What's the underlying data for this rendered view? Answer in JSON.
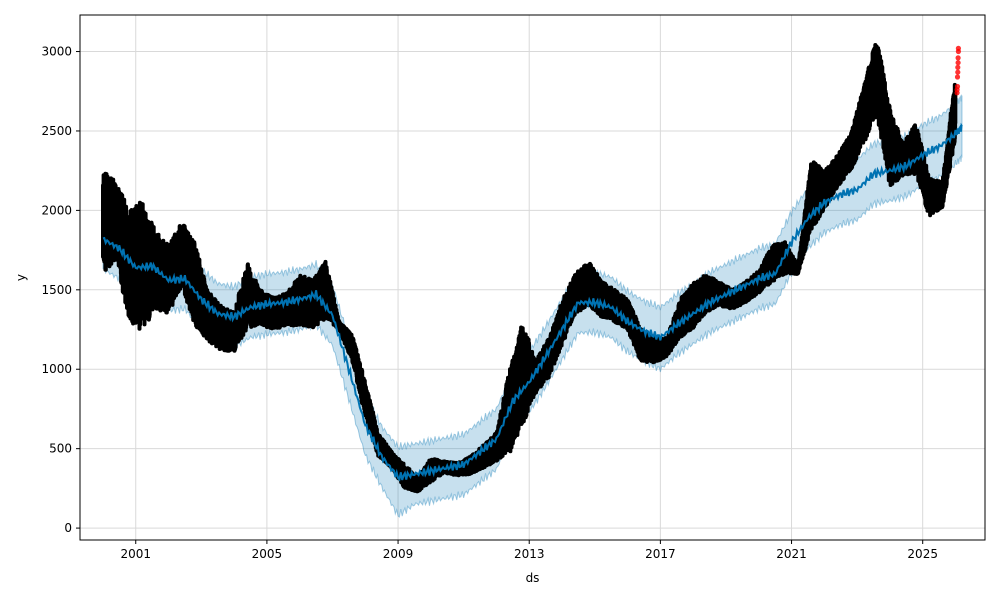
{
  "chart_data": {
    "type": "scatter",
    "title": "",
    "xlabel": "ds",
    "ylabel": "y",
    "xlim": [
      1999.3,
      2026.9
    ],
    "ylim": [
      -75,
      3230
    ],
    "x_ticks": [
      2001,
      2005,
      2009,
      2013,
      2017,
      2021,
      2025
    ],
    "x_tick_labels": [
      "2001",
      "2005",
      "2009",
      "2013",
      "2017",
      "2021",
      "2025"
    ],
    "y_ticks": [
      0,
      500,
      1000,
      1500,
      2000,
      2500,
      3000
    ],
    "y_tick_labels": [
      "0",
      "500",
      "1000",
      "1500",
      "2000",
      "2500",
      "3000"
    ],
    "grid": true,
    "colors": {
      "observed": "#000000",
      "forecast_line": "#0072B2",
      "uncertainty_band": "#0072B2",
      "highlighted_points": "#ff0000"
    },
    "forecast": {
      "x": [
        2000.0,
        2000.5,
        2001.0,
        2001.5,
        2002.0,
        2002.5,
        2003.0,
        2003.5,
        2004.0,
        2004.5,
        2005.0,
        2005.5,
        2006.0,
        2006.5,
        2007.0,
        2007.5,
        2008.0,
        2008.5,
        2009.0,
        2009.5,
        2010.0,
        2010.5,
        2011.0,
        2011.5,
        2012.0,
        2012.5,
        2013.0,
        2013.5,
        2014.0,
        2014.5,
        2015.0,
        2015.5,
        2016.0,
        2016.5,
        2017.0,
        2017.5,
        2018.0,
        2018.5,
        2019.0,
        2019.5,
        2020.0,
        2020.5,
        2021.0,
        2021.5,
        2022.0,
        2022.5,
        2023.0,
        2023.5,
        2024.0,
        2024.5,
        2025.0,
        2025.5,
        2026.0,
        2026.2
      ],
      "yhat": [
        1820,
        1760,
        1640,
        1650,
        1560,
        1570,
        1440,
        1350,
        1330,
        1390,
        1410,
        1420,
        1440,
        1470,
        1340,
        1000,
        650,
        450,
        320,
        340,
        360,
        380,
        400,
        480,
        560,
        800,
        920,
        1080,
        1250,
        1420,
        1420,
        1390,
        1300,
        1240,
        1200,
        1280,
        1350,
        1420,
        1470,
        1520,
        1570,
        1600,
        1800,
        1950,
        2050,
        2100,
        2130,
        2230,
        2250,
        2280,
        2350,
        2400,
        2480,
        2530
      ],
      "yhat_lower": [
        1630,
        1570,
        1450,
        1460,
        1370,
        1380,
        1250,
        1160,
        1140,
        1200,
        1220,
        1230,
        1250,
        1280,
        1150,
        810,
        460,
        260,
        80,
        150,
        170,
        190,
        210,
        290,
        370,
        610,
        730,
        890,
        1060,
        1230,
        1230,
        1200,
        1110,
        1050,
        1000,
        1090,
        1160,
        1230,
        1280,
        1330,
        1380,
        1410,
        1610,
        1760,
        1860,
        1910,
        1940,
        2040,
        2060,
        2090,
        2160,
        2210,
        2290,
        2340
      ],
      "yhat_upper": [
        2010,
        1950,
        1830,
        1840,
        1750,
        1760,
        1630,
        1540,
        1520,
        1580,
        1600,
        1610,
        1630,
        1660,
        1530,
        1190,
        840,
        640,
        510,
        530,
        550,
        570,
        590,
        670,
        750,
        990,
        1110,
        1270,
        1440,
        1610,
        1610,
        1580,
        1490,
        1430,
        1390,
        1470,
        1540,
        1610,
        1660,
        1710,
        1760,
        1790,
        1990,
        2140,
        2240,
        2290,
        2320,
        2420,
        2440,
        2470,
        2540,
        2590,
        2670,
        2720
      ]
    },
    "observed_envelope": {
      "x": [
        2000.0,
        2000.4,
        2000.8,
        2001.2,
        2001.6,
        2002.0,
        2002.4,
        2002.8,
        2003.2,
        2003.6,
        2004.0,
        2004.4,
        2004.8,
        2005.2,
        2005.6,
        2006.0,
        2006.4,
        2006.8,
        2007.2,
        2007.6,
        2008.0,
        2008.4,
        2008.8,
        2009.2,
        2009.6,
        2010.0,
        2010.4,
        2010.8,
        2011.2,
        2011.6,
        2012.0,
        2012.4,
        2012.8,
        2013.2,
        2013.6,
        2014.0,
        2014.4,
        2014.8,
        2015.2,
        2015.6,
        2016.0,
        2016.4,
        2016.8,
        2017.2,
        2017.6,
        2018.0,
        2018.4,
        2018.8,
        2019.2,
        2019.6,
        2020.0,
        2020.4,
        2020.8,
        2021.2,
        2021.6,
        2022.0,
        2022.4,
        2022.8,
        2023.2,
        2023.6,
        2024.0,
        2024.4,
        2024.8,
        2025.2,
        2025.6,
        2026.0
      ],
      "low": [
        1600,
        1680,
        1300,
        1230,
        1380,
        1350,
        1520,
        1280,
        1180,
        1120,
        1110,
        1260,
        1280,
        1250,
        1270,
        1280,
        1260,
        1320,
        1250,
        1050,
        700,
        450,
        380,
        250,
        230,
        290,
        350,
        330,
        340,
        380,
        420,
        460,
        650,
        850,
        950,
        1150,
        1350,
        1400,
        1330,
        1300,
        1250,
        1050,
        1040,
        1080,
        1200,
        1260,
        1360,
        1400,
        1380,
        1420,
        1480,
        1550,
        1600,
        1600,
        1880,
        2000,
        2150,
        2250,
        2420,
        2600,
        2150,
        2220,
        2230,
        1960,
        2020,
        2450
      ],
      "high": [
        2250,
        2180,
        2000,
        2060,
        1870,
        1780,
        1930,
        1800,
        1500,
        1400,
        1360,
        1670,
        1500,
        1450,
        1480,
        1600,
        1560,
        1680,
        1300,
        1220,
        920,
        600,
        480,
        400,
        320,
        440,
        420,
        410,
        450,
        520,
        600,
        1000,
        1300,
        1050,
        1200,
        1430,
        1600,
        1680,
        1560,
        1500,
        1440,
        1260,
        1200,
        1200,
        1440,
        1540,
        1600,
        1550,
        1500,
        1550,
        1620,
        1780,
        1800,
        1650,
        2320,
        2250,
        2350,
        2480,
        2780,
        3090,
        2650,
        2420,
        2550,
        2200,
        2180,
        2860
      ]
    },
    "highlighted_points": {
      "x": [
        2026.05,
        2026.05,
        2026.06,
        2026.06,
        2026.07,
        2026.07,
        2026.08,
        2026.08,
        2026.09,
        2026.09
      ],
      "y": [
        2740,
        2760,
        2780,
        2840,
        2870,
        2900,
        2930,
        2960,
        3000,
        3020
      ]
    }
  }
}
